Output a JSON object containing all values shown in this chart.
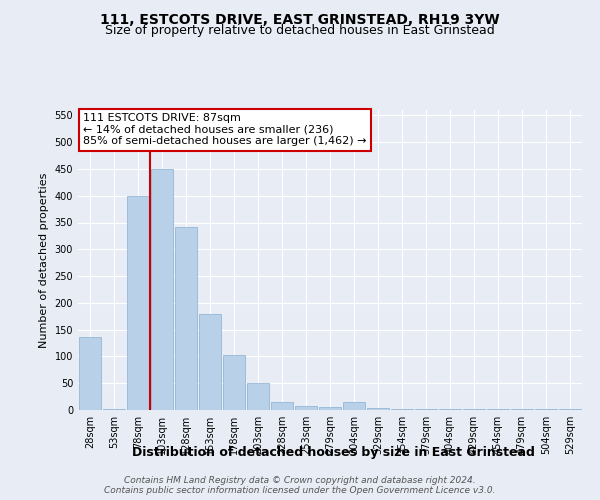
{
  "title": "111, ESTCOTS DRIVE, EAST GRINSTEAD, RH19 3YW",
  "subtitle": "Size of property relative to detached houses in East Grinstead",
  "xlabel": "Distribution of detached houses by size in East Grinstead",
  "ylabel": "Number of detached properties",
  "bins": [
    "28sqm",
    "53sqm",
    "78sqm",
    "103sqm",
    "128sqm",
    "153sqm",
    "178sqm",
    "203sqm",
    "228sqm",
    "253sqm",
    "279sqm",
    "304sqm",
    "329sqm",
    "354sqm",
    "379sqm",
    "404sqm",
    "429sqm",
    "454sqm",
    "479sqm",
    "504sqm",
    "529sqm"
  ],
  "values": [
    137,
    2,
    400,
    450,
    342,
    180,
    103,
    50,
    15,
    8,
    5,
    15,
    3,
    2,
    2,
    2,
    2,
    2,
    1,
    1,
    2
  ],
  "bar_color": "#b8d0e8",
  "bar_edge_color": "#8ab0d0",
  "vline_x_index": 2.5,
  "vline_color": "#cc0000",
  "annotation_text": "111 ESTCOTS DRIVE: 87sqm\n← 14% of detached houses are smaller (236)\n85% of semi-detached houses are larger (1,462) →",
  "annotation_box_facecolor": "#ffffff",
  "annotation_box_edgecolor": "#cc0000",
  "ylim": [
    0,
    560
  ],
  "yticks": [
    0,
    50,
    100,
    150,
    200,
    250,
    300,
    350,
    400,
    450,
    500,
    550
  ],
  "background_color": "#e8ecf5",
  "grid_color": "#ffffff",
  "footer_text": "Contains HM Land Registry data © Crown copyright and database right 2024.\nContains public sector information licensed under the Open Government Licence v3.0.",
  "title_fontsize": 10,
  "subtitle_fontsize": 9,
  "ylabel_fontsize": 8,
  "xlabel_fontsize": 9,
  "tick_fontsize": 7,
  "annotation_fontsize": 8,
  "footer_fontsize": 6.5
}
